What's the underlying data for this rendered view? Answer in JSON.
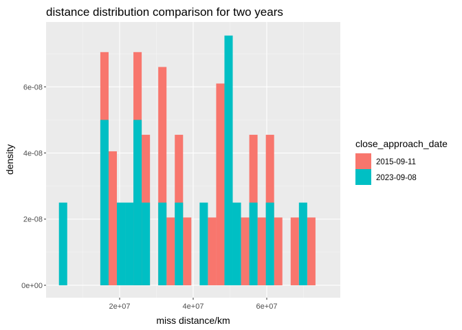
{
  "chart_data": {
    "type": "bar",
    "title": "distance distribution comparison for two years",
    "xlabel": "miss distance/km",
    "ylabel": "density",
    "xlim": [
      0,
      80000000
    ],
    "ylim": [
      -3.75e-09,
      7.96e-08
    ],
    "x_ticks": [
      {
        "value": 20000000,
        "label": "2e+07"
      },
      {
        "value": 40000000,
        "label": "4e+07"
      },
      {
        "value": 60000000,
        "label": "6e+07"
      }
    ],
    "x_minor_ticks": [
      10000000,
      30000000,
      50000000,
      70000000
    ],
    "y_ticks": [
      {
        "value": 0,
        "label": "0e+00"
      },
      {
        "value": 2e-08,
        "label": "2e-08"
      },
      {
        "value": 4e-08,
        "label": "4e-08"
      },
      {
        "value": 6e-08,
        "label": "6e-08"
      }
    ],
    "y_minor_ticks": [
      1e-08,
      3e-08,
      5e-08,
      7e-08
    ],
    "grid": true,
    "legend_position": "right",
    "legend_title": "close_approach_date",
    "series": [
      {
        "name": "2015-09-11",
        "color": "#F8766D",
        "bins": [
          {
            "x0": 14750000,
            "x1": 17000000,
            "y": 7.05e-08
          },
          {
            "x0": 17000000,
            "x1": 19250000,
            "y": 4.05e-08
          },
          {
            "x0": 23750000,
            "x1": 26000000,
            "y": 7.05e-08
          },
          {
            "x0": 26000000,
            "x1": 28250000,
            "y": 4.55e-08
          },
          {
            "x0": 30500000,
            "x1": 32750000,
            "y": 6.6e-08
          },
          {
            "x0": 32750000,
            "x1": 35000000,
            "y": 2.05e-08
          },
          {
            "x0": 35000000,
            "x1": 37250000,
            "y": 4.55e-08
          },
          {
            "x0": 37250000,
            "x1": 39500000,
            "y": 2.05e-08
          },
          {
            "x0": 44000000,
            "x1": 46250000,
            "y": 2.05e-08
          },
          {
            "x0": 46250000,
            "x1": 48500000,
            "y": 6.1e-08
          },
          {
            "x0": 53000000,
            "x1": 55250000,
            "y": 2.05e-08
          },
          {
            "x0": 55250000,
            "x1": 57500000,
            "y": 4.55e-08
          },
          {
            "x0": 57500000,
            "x1": 59750000,
            "y": 2.05e-08
          },
          {
            "x0": 59750000,
            "x1": 62000000,
            "y": 4.55e-08
          },
          {
            "x0": 62000000,
            "x1": 64250000,
            "y": 2.05e-08
          },
          {
            "x0": 66500000,
            "x1": 68750000,
            "y": 2.05e-08
          },
          {
            "x0": 71000000,
            "x1": 73250000,
            "y": 2.05e-08
          }
        ]
      },
      {
        "name": "2023-09-08",
        "color": "#00BFC4",
        "bins": [
          {
            "x0": 3500000,
            "x1": 5750000,
            "y": 2.5e-08
          },
          {
            "x0": 14750000,
            "x1": 17000000,
            "y": 5e-08
          },
          {
            "x0": 19250000,
            "x1": 21500000,
            "y": 2.5e-08
          },
          {
            "x0": 21500000,
            "x1": 23750000,
            "y": 2.5e-08
          },
          {
            "x0": 23750000,
            "x1": 26000000,
            "y": 5e-08
          },
          {
            "x0": 26000000,
            "x1": 28250000,
            "y": 2.5e-08
          },
          {
            "x0": 30500000,
            "x1": 32750000,
            "y": 2.5e-08
          },
          {
            "x0": 35000000,
            "x1": 37250000,
            "y": 2.5e-08
          },
          {
            "x0": 41750000,
            "x1": 44000000,
            "y": 2.5e-08
          },
          {
            "x0": 48500000,
            "x1": 50750000,
            "y": 7.55e-08
          },
          {
            "x0": 50750000,
            "x1": 53000000,
            "y": 2.5e-08
          },
          {
            "x0": 55250000,
            "x1": 57500000,
            "y": 2.5e-08
          },
          {
            "x0": 59750000,
            "x1": 62000000,
            "y": 2.5e-08
          },
          {
            "x0": 68750000,
            "x1": 71000000,
            "y": 2.5e-08
          }
        ]
      }
    ]
  }
}
